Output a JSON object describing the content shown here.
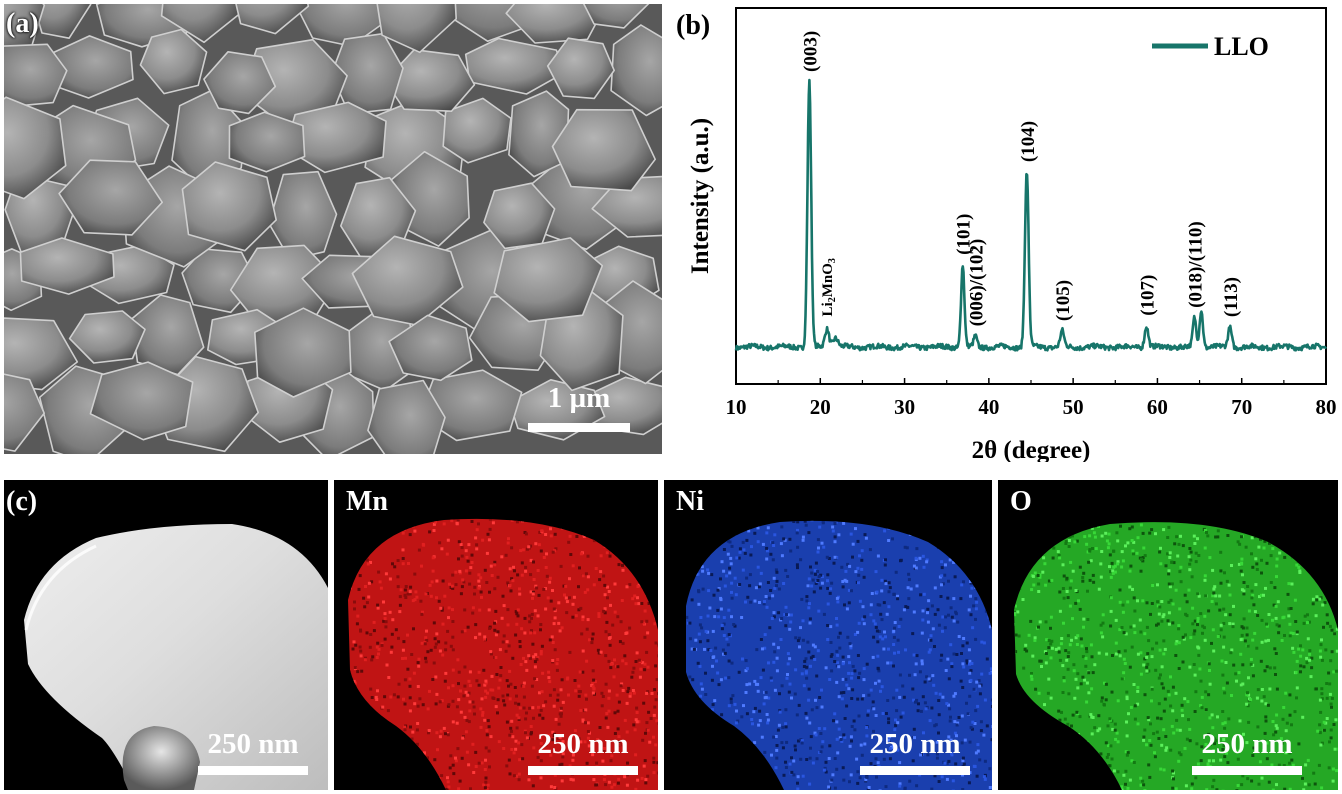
{
  "colors": {
    "trace": "#17756a",
    "mn_map": "#d81a1a",
    "ni_map": "#1f4fd0",
    "o_map": "#2fc42f",
    "sem_gray": "#7d7d7d"
  },
  "panels": {
    "a": {
      "label": "(a)",
      "scale_bar": "1 µm"
    },
    "b": {
      "label": "(b)"
    },
    "c": {
      "label": "(c)",
      "maps": [
        {
          "element": "",
          "scale_bar": "250 nm"
        },
        {
          "element": "Mn",
          "scale_bar": "250 nm"
        },
        {
          "element": "Ni",
          "scale_bar": "250 nm"
        },
        {
          "element": "O",
          "scale_bar": "250 nm"
        }
      ]
    }
  },
  "chart_data": {
    "type": "line",
    "xlabel": "2θ (degree)",
    "ylabel": "Intensity (a.u.)",
    "xlim": [
      10,
      80
    ],
    "xticks": [
      10,
      20,
      30,
      40,
      50,
      60,
      70,
      80
    ],
    "y_ticks_shown": false,
    "legend": {
      "label": "LLO",
      "placement": "top-right"
    },
    "series": [
      {
        "name": "LLO",
        "peaks": [
          {
            "x": 18.7,
            "height": 1.0,
            "width": 0.22,
            "label": "(003)"
          },
          {
            "x": 20.8,
            "height": 0.07,
            "width": 0.25,
            "label": "Li2MnO3",
            "label_main": "Li",
            "label_sub1": "2",
            "label_mid": "MnO",
            "label_sub2": "3"
          },
          {
            "x": 21.8,
            "height": 0.035,
            "width": 0.3,
            "label": ""
          },
          {
            "x": 36.9,
            "height": 0.31,
            "width": 0.2,
            "label": "(101)"
          },
          {
            "x": 38.4,
            "height": 0.04,
            "width": 0.2,
            "label": "(006)/(102)"
          },
          {
            "x": 44.5,
            "height": 0.66,
            "width": 0.22,
            "label": "(104)"
          },
          {
            "x": 48.7,
            "height": 0.06,
            "width": 0.22,
            "label": "(105)"
          },
          {
            "x": 58.7,
            "height": 0.08,
            "width": 0.22,
            "label": "(107)"
          },
          {
            "x": 64.4,
            "height": 0.11,
            "width": 0.2,
            "label": "(018)/(110)"
          },
          {
            "x": 65.2,
            "height": 0.14,
            "width": 0.2,
            "label": ""
          },
          {
            "x": 68.6,
            "height": 0.075,
            "width": 0.22,
            "label": "(113)"
          }
        ]
      }
    ]
  }
}
